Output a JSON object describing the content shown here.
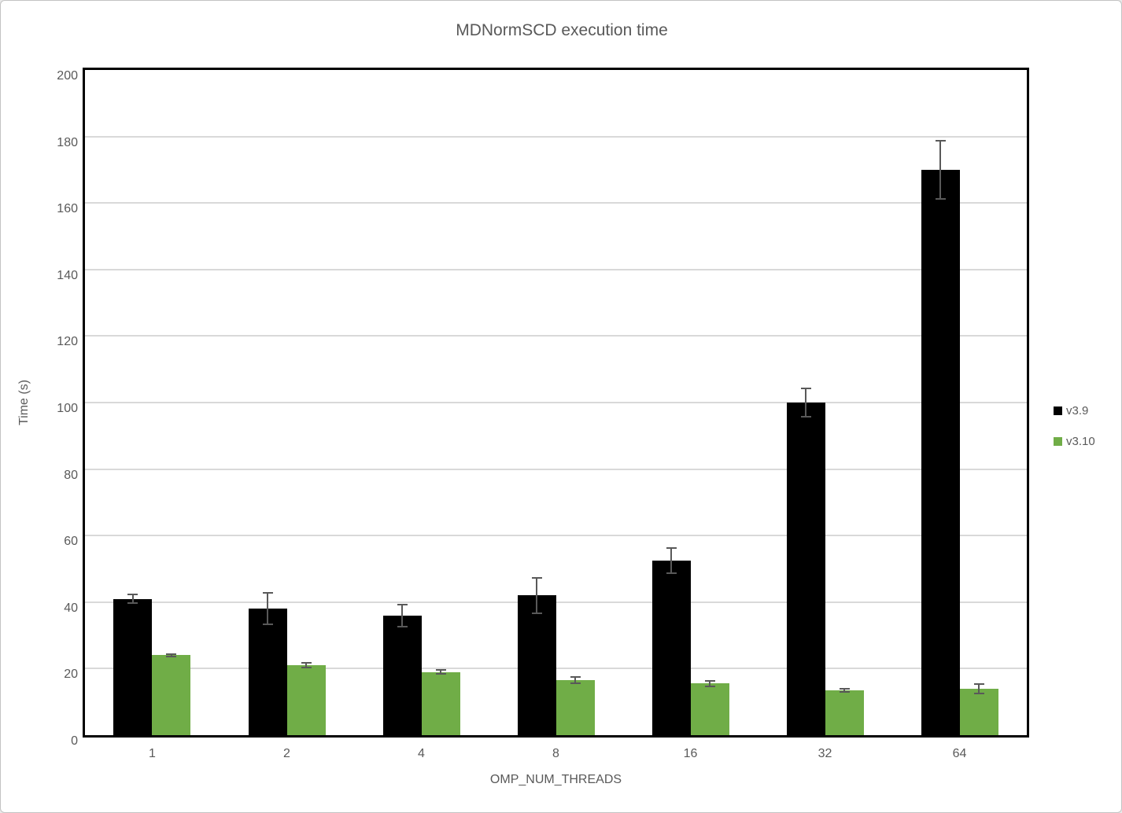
{
  "window": {
    "background": "#ffffff",
    "border_color": "#c3c3c3"
  },
  "chart_data": {
    "type": "bar",
    "title": "MDNormSCD execution time",
    "xlabel": "OMP_NUM_THREADS",
    "ylabel": "Time (s)",
    "categories": [
      "1",
      "2",
      "4",
      "8",
      "16",
      "32",
      "64"
    ],
    "series": [
      {
        "name": "v3.9",
        "color": "#000000",
        "values": [
          41,
          38,
          36,
          42,
          52.5,
          100,
          170
        ],
        "errors": [
          1.5,
          5,
          3.5,
          5.5,
          4,
          4.5,
          9
        ]
      },
      {
        "name": "v3.10",
        "color": "#70AD47",
        "values": [
          24,
          21,
          19,
          16.5,
          15.5,
          13.5,
          14
        ],
        "errors": [
          0.6,
          1,
          0.8,
          1.2,
          1,
          0.7,
          1.6
        ]
      }
    ],
    "ylim": [
      0,
      200
    ],
    "ytick_step": 20,
    "grid": "horizontal",
    "gridline_color": "#d9d9d9",
    "error_bar_color": "#595959",
    "text_color": "#595959",
    "legend_position": "right",
    "plot_border_color": "#000000"
  }
}
